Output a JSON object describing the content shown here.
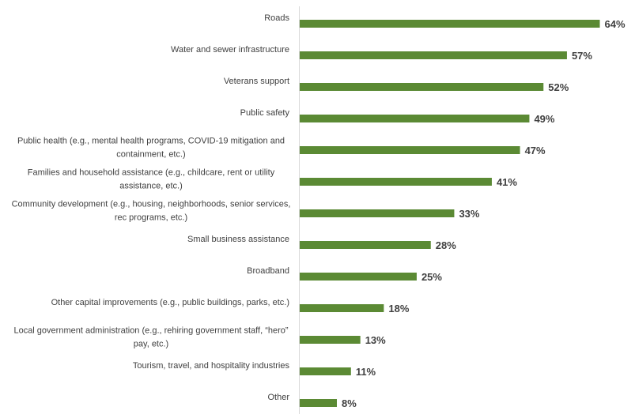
{
  "chart_data": {
    "type": "bar",
    "orientation": "horizontal",
    "title": "",
    "xlabel": "",
    "ylabel": "",
    "xlim": [
      0,
      64
    ],
    "grid": false,
    "legend": "none",
    "bar_color": "#5b8a34",
    "value_suffix": "%",
    "categories": [
      [
        "Roads"
      ],
      [
        "Water and sewer infrastructure"
      ],
      [
        "Veterans support"
      ],
      [
        "Public safety"
      ],
      [
        "Public health (e.g., mental health programs, COVID-19 mitigation and",
        "containment, etc.)"
      ],
      [
        "Families and household assistance (e.g., childcare, rent or utility",
        "assistance, etc.)"
      ],
      [
        "Community development (e.g., housing, neighborhoods, senior services,",
        "rec programs, etc.)"
      ],
      [
        "Small business assistance"
      ],
      [
        "Broadband"
      ],
      [
        "Other capital improvements (e.g., public buildings, parks, etc.)"
      ],
      [
        "Local government administration (e.g., rehiring government staff, “hero”",
        "pay, etc.)"
      ],
      [
        "Tourism, travel, and hospitality industries"
      ],
      [
        "Other"
      ]
    ],
    "values": [
      64,
      57,
      52,
      49,
      47,
      41,
      33,
      28,
      25,
      18,
      13,
      11,
      8
    ]
  }
}
